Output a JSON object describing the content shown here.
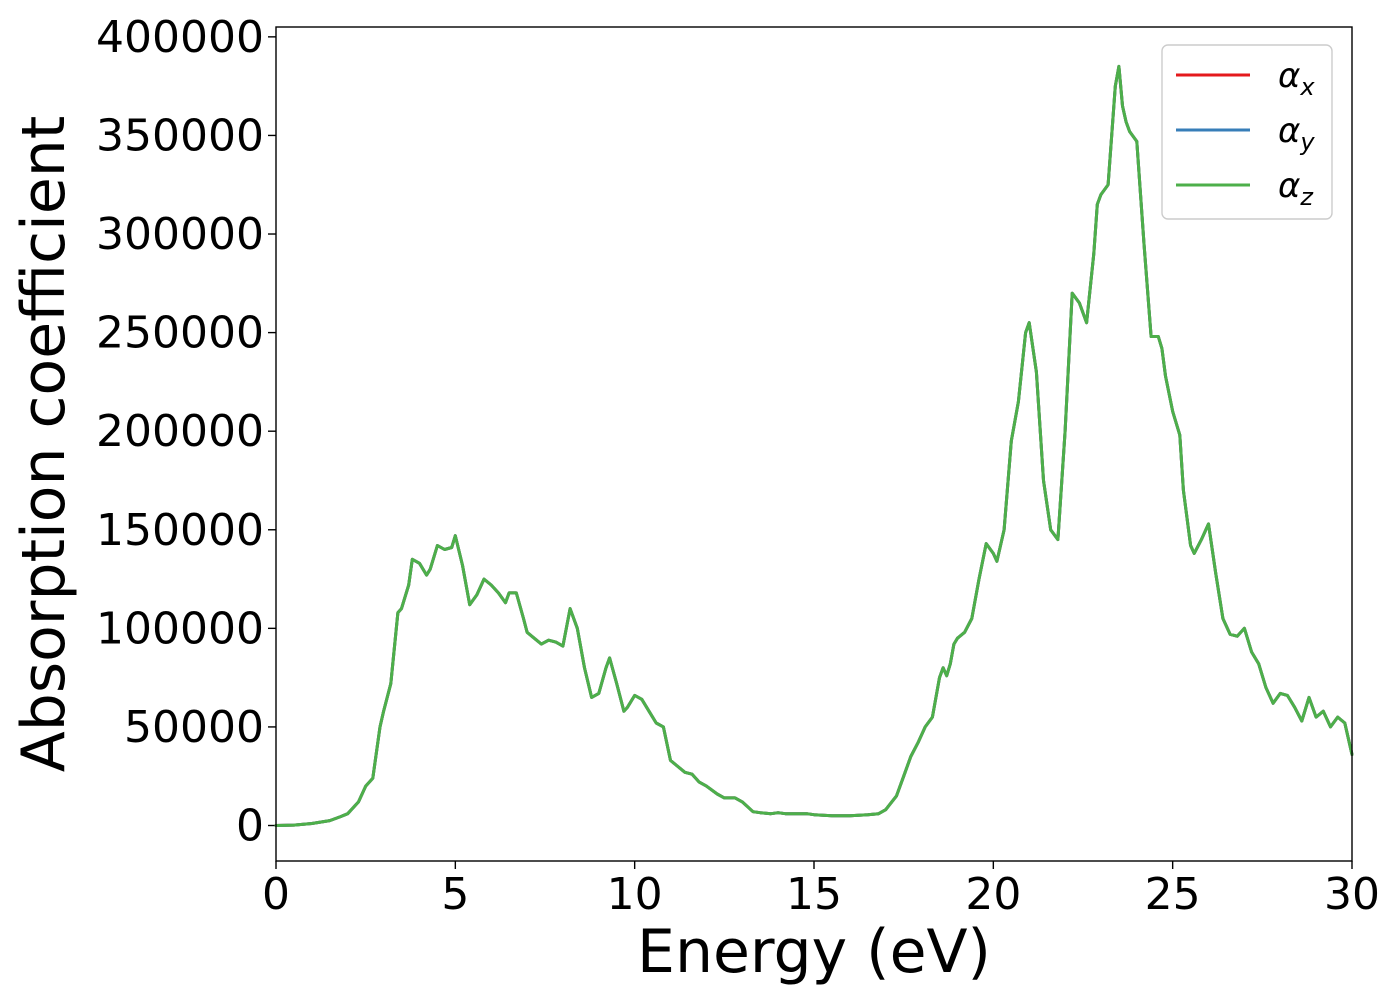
{
  "chart_data": {
    "type": "line",
    "title": "",
    "xlabel": "Energy (eV)",
    "ylabel": "Absorption coefficient",
    "xlim": [
      0,
      30
    ],
    "ylim": [
      -18000,
      405000
    ],
    "xticks": [
      0,
      5,
      10,
      15,
      20,
      25,
      30
    ],
    "yticks": [
      0,
      50000,
      100000,
      150000,
      200000,
      250000,
      300000,
      350000,
      400000
    ],
    "grid": false,
    "legend_position": "top-right",
    "x": [
      0,
      0.5,
      1.0,
      1.5,
      1.8,
      2.0,
      2.3,
      2.5,
      2.7,
      2.9,
      3.0,
      3.2,
      3.4,
      3.5,
      3.7,
      3.8,
      4.0,
      4.2,
      4.3,
      4.5,
      4.7,
      4.9,
      5.0,
      5.2,
      5.4,
      5.6,
      5.8,
      6.0,
      6.2,
      6.4,
      6.5,
      6.7,
      6.9,
      7.0,
      7.2,
      7.4,
      7.6,
      7.8,
      8.0,
      8.2,
      8.4,
      8.6,
      8.8,
      9.0,
      9.2,
      9.3,
      9.5,
      9.7,
      9.8,
      10.0,
      10.2,
      10.4,
      10.6,
      10.8,
      11.0,
      11.2,
      11.4,
      11.6,
      11.8,
      12.0,
      12.3,
      12.5,
      12.8,
      13.0,
      13.3,
      13.5,
      13.8,
      14.0,
      14.2,
      14.5,
      14.8,
      15.0,
      15.5,
      16.0,
      16.5,
      16.8,
      17.0,
      17.3,
      17.5,
      17.7,
      17.9,
      18.1,
      18.3,
      18.5,
      18.6,
      18.7,
      18.8,
      18.9,
      19.0,
      19.2,
      19.4,
      19.6,
      19.8,
      20.0,
      20.1,
      20.3,
      20.5,
      20.7,
      20.9,
      21.0,
      21.2,
      21.4,
      21.6,
      21.8,
      22.0,
      22.2,
      22.4,
      22.6,
      22.8,
      22.9,
      23.0,
      23.2,
      23.4,
      23.5,
      23.6,
      23.7,
      23.8,
      24.0,
      24.2,
      24.4,
      24.6,
      24.7,
      24.8,
      25.0,
      25.2,
      25.3,
      25.5,
      25.6,
      25.8,
      26.0,
      26.2,
      26.4,
      26.6,
      26.8,
      27.0,
      27.2,
      27.4,
      27.6,
      27.8,
      28.0,
      28.2,
      28.4,
      28.6,
      28.8,
      29.0,
      29.2,
      29.4,
      29.6,
      29.8,
      30.0
    ],
    "series": [
      {
        "name": "α_x",
        "color": "#e41a1c"
      },
      {
        "name": "α_y",
        "color": "#377eb8"
      },
      {
        "name": "α_z",
        "color": "#4daf4a"
      }
    ],
    "values": [
      0,
      200,
      1000,
      2500,
      4500,
      6000,
      12000,
      20000,
      24000,
      50000,
      58000,
      72000,
      108000,
      110000,
      122000,
      135000,
      133000,
      127000,
      130000,
      142000,
      140000,
      141000,
      147000,
      132000,
      112000,
      117000,
      125000,
      122000,
      118000,
      113000,
      118000,
      118000,
      105000,
      98000,
      95000,
      92000,
      94000,
      93000,
      91000,
      110000,
      100000,
      80000,
      65000,
      67000,
      80000,
      85000,
      72000,
      58000,
      60000,
      66000,
      64000,
      58000,
      52000,
      50000,
      33000,
      30000,
      27000,
      26000,
      22000,
      20000,
      16000,
      14000,
      14000,
      12000,
      7000,
      6500,
      6000,
      6500,
      6000,
      6000,
      6000,
      5500,
      5000,
      5000,
      5500,
      6000,
      8000,
      15000,
      25000,
      35000,
      42000,
      50000,
      55000,
      75000,
      80000,
      76000,
      82000,
      92000,
      95000,
      98000,
      105000,
      125000,
      143000,
      138000,
      134000,
      150000,
      195000,
      215000,
      250000,
      255000,
      230000,
      175000,
      150000,
      145000,
      200000,
      270000,
      265000,
      255000,
      290000,
      315000,
      320000,
      325000,
      375000,
      385000,
      365000,
      357000,
      352000,
      347000,
      295000,
      248000,
      248000,
      242000,
      228000,
      210000,
      198000,
      170000,
      142000,
      138000,
      145000,
      153000,
      128000,
      105000,
      97000,
      96000,
      100000,
      88000,
      82000,
      70000,
      62000,
      67000,
      66000,
      60000,
      53000,
      65000,
      55000,
      58000,
      50000,
      55000,
      52000,
      36000
    ]
  }
}
